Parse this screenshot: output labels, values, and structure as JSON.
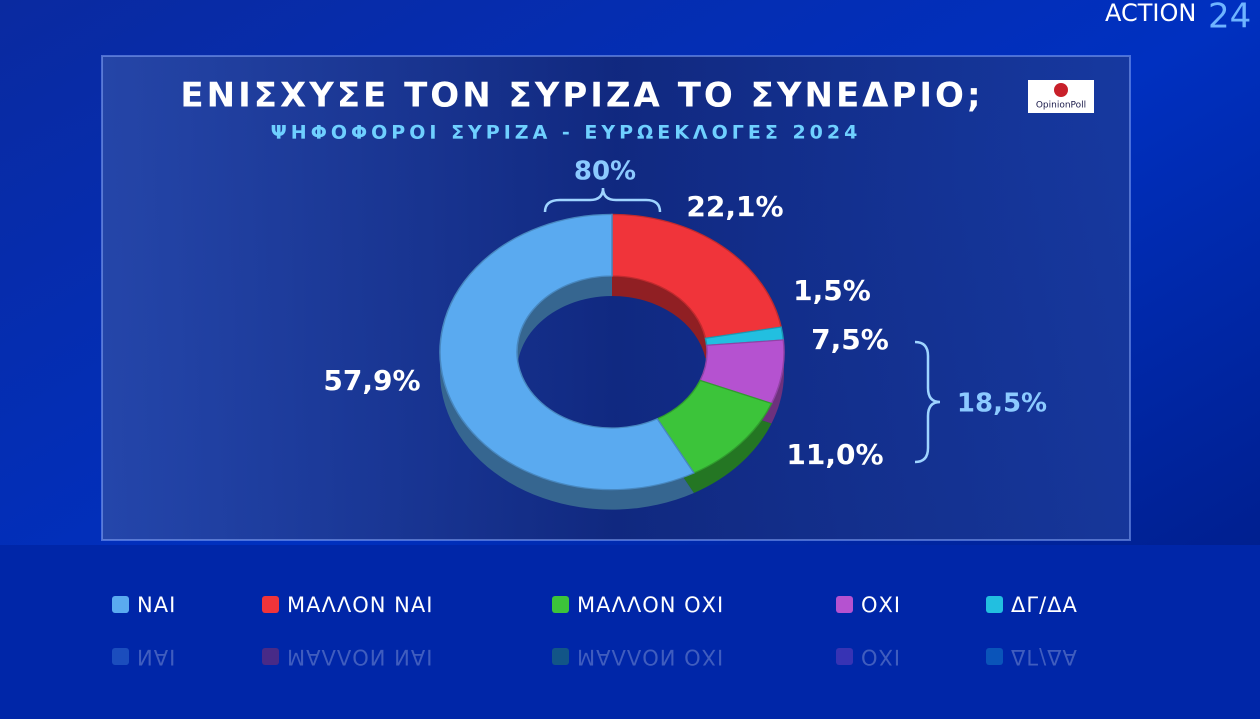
{
  "chart_data": {
    "type": "donut",
    "title": "ΕΝΙΣΧΥΣΕ ΤΟΝ ΣΥΡΙΖΑ ΤΟ ΣΥΝΕΔΡΙΟ;",
    "subtitle": "ΨΗΦΟΦΟΡΟΙ ΣΥΡΙΖΑ - ΕΥΡΩΕΚΛΟΓΕΣ 2024",
    "categories": [
      "ΝΑΙ",
      "ΜΑΛΛΟΝ ΝΑΙ",
      "ΜΑΛΛΟΝ ΟΧΙ",
      "ΟΧΙ",
      "ΔΓ/ΔΑ"
    ],
    "values": [
      57.9,
      22.1,
      11.0,
      7.5,
      1.5
    ],
    "value_labels": [
      "57,9%",
      "22,1%",
      "11,0%",
      "7,5%",
      "1,5%"
    ],
    "colors": [
      "#5aaaf0",
      "#f0343a",
      "#3cc43a",
      "#b552d0",
      "#22bfe0"
    ],
    "annotations": [
      {
        "value": 80,
        "label": "80%"
      },
      {
        "value": 18.5,
        "label": "18,5%"
      }
    ]
  },
  "logo": {
    "name": "ACTION",
    "number": "24"
  },
  "source_logo": "OpinionPoll"
}
